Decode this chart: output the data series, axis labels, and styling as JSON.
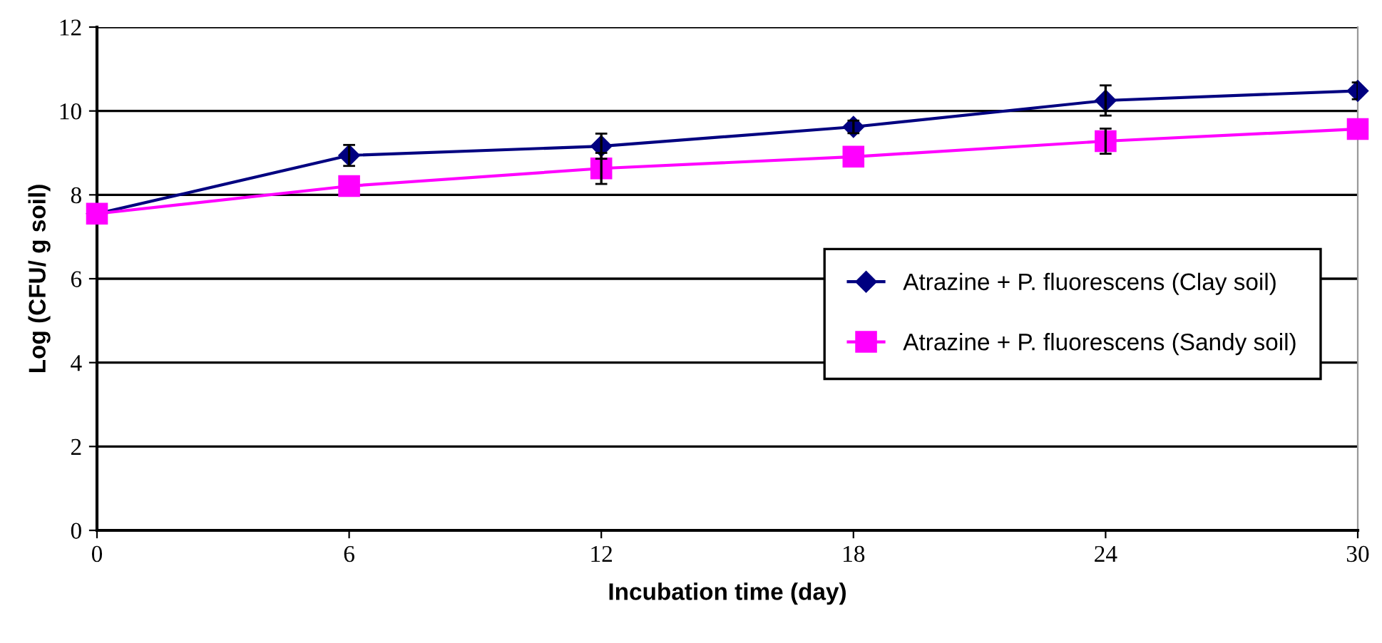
{
  "chart_data": {
    "type": "line",
    "xlabel": "Incubation time (day)",
    "ylabel": "Log (CFU/ g soil)",
    "x": [
      0,
      6,
      12,
      18,
      24,
      30
    ],
    "xlim": [
      0,
      30
    ],
    "xticks": [
      0,
      6,
      12,
      18,
      24,
      30
    ],
    "ylim": [
      0,
      12
    ],
    "yticks": [
      0,
      2,
      4,
      6,
      8,
      10,
      12
    ],
    "grid": "y",
    "legend": "right",
    "series": [
      {
        "name": "Atrazine + P. fluorescens (Clay soil)",
        "color": "#000080",
        "marker": "diamond",
        "values": [
          7.55,
          8.94,
          9.16,
          9.62,
          10.25,
          10.48
        ],
        "errors": [
          null,
          0.25,
          0.3,
          0.15,
          0.36,
          0.2
        ]
      },
      {
        "name": "Atrazine + P. fluorescens (Sandy soil)",
        "color": "#ff00ff",
        "marker": "square",
        "values": [
          7.55,
          8.21,
          8.63,
          8.91,
          9.28,
          9.57
        ],
        "errors": [
          null,
          null,
          0.37,
          null,
          0.3,
          null
        ]
      }
    ]
  }
}
